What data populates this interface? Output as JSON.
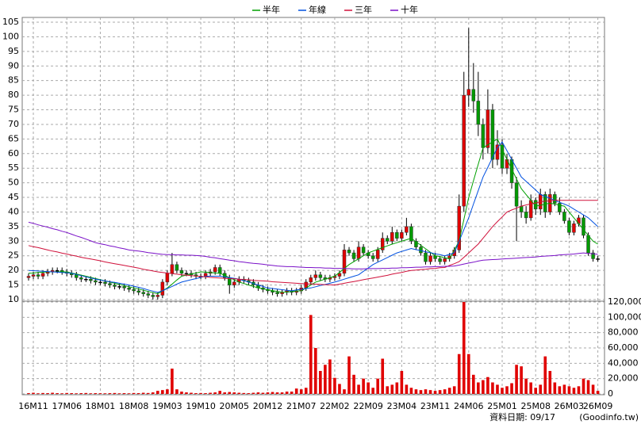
{
  "chart_data": {
    "type": "candlestick",
    "categories": [
      null,
      "16M11",
      null,
      null,
      null,
      null,
      null,
      null,
      "17M06",
      null,
      null,
      null,
      null,
      null,
      null,
      "18M01",
      null,
      null,
      null,
      null,
      null,
      null,
      "18M08",
      null,
      null,
      null,
      null,
      null,
      null,
      "19M03",
      null,
      null,
      null,
      null,
      null,
      null,
      "19M10",
      null,
      null,
      null,
      null,
      null,
      null,
      "20M05",
      null,
      null,
      null,
      null,
      null,
      null,
      "20M12",
      null,
      null,
      null,
      null,
      null,
      null,
      "21M07",
      null,
      null,
      null,
      null,
      null,
      null,
      "22M02",
      null,
      null,
      null,
      null,
      null,
      null,
      "22M09",
      null,
      null,
      null,
      null,
      null,
      null,
      "23M04",
      null,
      null,
      null,
      null,
      null,
      null,
      "23M11",
      null,
      null,
      null,
      null,
      null,
      null,
      "24M06",
      null,
      null,
      null,
      null,
      null,
      null,
      "25M01",
      null,
      null,
      null,
      null,
      null,
      null,
      "25M08",
      null,
      null,
      null,
      null,
      null,
      null,
      "26M03",
      null,
      null,
      null,
      null,
      null,
      "26M09"
    ],
    "open": [
      17.5,
      18,
      18.5,
      18,
      19,
      19.5,
      20,
      20,
      19.5,
      19,
      18.5,
      17.5,
      17,
      17,
      16.5,
      16,
      16,
      15.5,
      15,
      14.5,
      14.5,
      14,
      13.5,
      13,
      12.5,
      12,
      11.5,
      11,
      11.5,
      16,
      19,
      22,
      20,
      19,
      19,
      18.5,
      18,
      18,
      19,
      19.5,
      21,
      19,
      17.5,
      15,
      16,
      17,
      16.5,
      16,
      15,
      14,
      13.5,
      13,
      12.5,
      12,
      12.5,
      13,
      12.5,
      13,
      14,
      16,
      17.5,
      18.5,
      17.5,
      17,
      17.5,
      18,
      19,
      27,
      26,
      24,
      28,
      26,
      25,
      24,
      27,
      31,
      30,
      33,
      31,
      33,
      35,
      30,
      28,
      26,
      23,
      25,
      24,
      23,
      24,
      25,
      27,
      42,
      80,
      82,
      78,
      70,
      62,
      75,
      58,
      63,
      55,
      58,
      50,
      42,
      40,
      38,
      44,
      41,
      46,
      40,
      46,
      43,
      40,
      37,
      33,
      36,
      38,
      32,
      26,
      24
    ],
    "high": [
      19,
      19.5,
      19.5,
      20,
      20.5,
      21,
      21,
      21,
      20.5,
      20,
      19.5,
      18.5,
      18,
      18,
      17.5,
      17,
      17,
      16.5,
      16,
      15.5,
      15.5,
      15,
      14.5,
      14,
      13.5,
      13,
      12.5,
      12.5,
      17,
      20,
      26,
      23,
      21,
      20,
      20,
      19.5,
      19,
      20,
      20.5,
      22,
      22,
      20,
      18.5,
      17,
      18,
      18,
      17.5,
      17,
      16,
      15,
      14.5,
      14,
      13.5,
      13.5,
      14,
      14,
      14,
      15,
      17,
      18.5,
      20,
      19.5,
      18.5,
      18.5,
      19,
      20,
      29,
      28,
      27,
      30,
      29,
      27,
      26,
      28,
      33,
      32,
      35,
      34,
      34,
      38,
      36,
      31,
      29,
      27,
      26,
      26,
      25,
      25,
      26,
      28,
      46,
      88,
      103,
      91,
      88,
      72,
      82,
      77,
      68,
      65,
      60,
      59,
      52,
      44,
      42,
      46,
      45,
      48,
      47,
      48,
      47,
      45,
      41,
      38,
      37,
      39,
      39,
      33,
      27,
      25
    ],
    "low": [
      16.5,
      17,
      17,
      17,
      18,
      18.5,
      19,
      18.5,
      18,
      17.5,
      16.5,
      16,
      16,
      15.5,
      15,
      15,
      14.5,
      14,
      13.5,
      13.5,
      13,
      12.5,
      12,
      11.5,
      11,
      10.5,
      10,
      10,
      10.5,
      15,
      18,
      19,
      18,
      18,
      17.5,
      17,
      17,
      17,
      18,
      18.5,
      18,
      16.5,
      12,
      14,
      15,
      15.5,
      15,
      14,
      13,
      12.5,
      12,
      11.5,
      11,
      11,
      11.5,
      11.5,
      11.5,
      12,
      13,
      15,
      16.5,
      16.5,
      16,
      16,
      16.5,
      17,
      18,
      25,
      23,
      23,
      25,
      24,
      23,
      23,
      26,
      29,
      29,
      30,
      30,
      32,
      29,
      27,
      25,
      22,
      22,
      23,
      22,
      22,
      23,
      24,
      26,
      40,
      76,
      74,
      66,
      58,
      60,
      55,
      56,
      53,
      53,
      48,
      30,
      38,
      36,
      37,
      39,
      39,
      38,
      39,
      42,
      39,
      36,
      32,
      32,
      35,
      31,
      25,
      23,
      23
    ],
    "close": [
      18,
      18.5,
      18,
      19,
      19.5,
      20,
      20,
      19.5,
      19,
      18.5,
      17.5,
      17,
      17,
      16.5,
      16,
      16,
      15.5,
      15,
      14.5,
      14.5,
      14,
      13.5,
      13,
      12.5,
      12,
      11.5,
      11,
      11.5,
      16,
      19,
      22,
      20,
      19,
      19,
      18.5,
      18,
      18,
      19,
      19.5,
      21,
      19,
      17.5,
      15,
      16,
      17,
      16.5,
      16,
      15,
      14,
      13.5,
      13,
      12.5,
      12,
      12.5,
      13,
      12.5,
      13,
      14,
      16,
      17.5,
      18.5,
      17.5,
      17,
      17.5,
      18,
      19,
      27,
      26,
      24,
      28,
      26,
      25,
      24,
      27,
      31,
      30,
      33,
      31,
      33,
      35,
      30,
      28,
      26,
      23,
      25,
      24,
      23,
      24,
      25,
      27,
      42,
      80,
      82,
      78,
      70,
      62,
      75,
      58,
      63,
      55,
      58,
      50,
      42,
      40,
      38,
      44,
      41,
      46,
      40,
      46,
      43,
      40,
      37,
      33,
      36,
      38,
      32,
      26,
      24,
      24
    ],
    "volume": [
      1000,
      1500,
      800,
      1200,
      1000,
      1500,
      1000,
      800,
      1200,
      1000,
      800,
      1000,
      1200,
      800,
      1000,
      900,
      800,
      1000,
      1200,
      800,
      1000,
      800,
      1200,
      1000,
      1500,
      1200,
      2000,
      4000,
      5000,
      6000,
      33000,
      6000,
      3000,
      2000,
      1500,
      1000,
      1200,
      1000,
      1500,
      2000,
      4000,
      2000,
      2500,
      2000,
      1500,
      1200,
      1000,
      1500,
      2000,
      1500,
      2000,
      2500,
      2000,
      2000,
      3000,
      3000,
      7000,
      6000,
      8000,
      103000,
      60000,
      30000,
      38000,
      45000,
      21000,
      13000,
      6000,
      49000,
      25000,
      12000,
      20000,
      15000,
      8000,
      20000,
      46000,
      10000,
      12000,
      15000,
      30000,
      12000,
      8000,
      6000,
      5000,
      6000,
      5000,
      4000,
      5000,
      6000,
      8000,
      10000,
      52000,
      120000,
      52000,
      25000,
      15000,
      18000,
      22000,
      15000,
      12000,
      8000,
      10000,
      14000,
      38000,
      36000,
      20000,
      15000,
      8000,
      12000,
      49000,
      30000,
      15000,
      10000,
      12000,
      10000,
      8000,
      10000,
      20000,
      18000,
      12000,
      4000
    ],
    "up_color": "#e00000",
    "down_color": "#009a00",
    "flat_color": "#000000",
    "volume_color": "#e00000",
    "ylim": [
      10,
      105
    ],
    "yticks": [
      10,
      15,
      20,
      25,
      30,
      35,
      40,
      45,
      50,
      55,
      60,
      65,
      70,
      75,
      80,
      85,
      90,
      95,
      100,
      105
    ],
    "y2lim": [
      0,
      120000
    ],
    "y2ticks": [
      0,
      {
        "value": 20000,
        "label": "20,000"
      },
      {
        "value": 40000,
        "label": "40,000"
      },
      {
        "value": 60000,
        "label": "60,000"
      },
      {
        "value": 80000,
        "label": "80,000"
      },
      {
        "value": 100000,
        "label": "100,000"
      },
      {
        "value": 120000,
        "label": "120,000"
      }
    ],
    "grid": true,
    "series": [
      {
        "name": "半年",
        "color": "#00a000",
        "values": [
          19.0,
          19.1,
          19.3,
          19.4,
          19.5,
          19.5,
          19.5,
          19.5,
          19.5,
          19.1,
          18.8,
          18.4,
          18.0,
          17.6,
          17.2,
          16.8,
          16.4,
          16.0,
          15.6,
          15.2,
          14.8,
          14.4,
          14.0,
          13.6,
          13.2,
          12.8,
          12.4,
          12.0,
          13.0,
          14.0,
          15.3,
          16.7,
          18.0,
          18.4,
          18.8,
          19.1,
          19.5,
          19.4,
          19.3,
          19.1,
          19.0,
          18.3,
          17.5,
          16.8,
          16.0,
          15.5,
          15.0,
          14.5,
          14.0,
          13.7,
          13.4,
          13.1,
          12.8,
          12.5,
          12.6,
          12.8,
          12.9,
          13.0,
          14.0,
          15.0,
          16.0,
          16.5,
          17.0,
          17.5,
          18.0,
          19.3,
          20.7,
          22.0,
          23.0,
          24.0,
          25.0,
          26.0,
          26.6,
          27.2,
          27.8,
          28.4,
          29.0,
          29.5,
          30.0,
          30.5,
          31.0,
          29.8,
          28.6,
          27.4,
          26.2,
          25.0,
          24.7,
          24.3,
          24.0,
          27.0,
          30.0,
          37.5,
          45.0,
          50.7,
          56.3,
          62.0,
          63.0,
          64.0,
          65.0,
          61.5,
          58.0,
          54.7,
          51.3,
          48.0,
          46.0,
          44.0,
          42.0,
          42.3,
          42.7,
          43.0,
          42.7,
          42.3,
          42.0,
          40.0,
          38.0,
          36.0,
          34.0,
          32.0,
          30.0,
          29.0
        ]
      },
      {
        "name": "年線",
        "color": "#0050e0",
        "values": [
          20.0,
          19.9,
          19.8,
          19.7,
          19.6,
          19.5,
          19.4,
          19.3,
          19.2,
          19.0,
          18.6,
          18.2,
          17.8,
          17.4,
          17.0,
          16.7,
          16.4,
          16.1,
          15.9,
          15.6,
          15.3,
          15.0,
          14.6,
          14.2,
          13.8,
          13.3,
          12.9,
          12.5,
          13.0,
          13.8,
          14.5,
          15.3,
          16.0,
          16.4,
          16.8,
          17.2,
          17.6,
          18.0,
          18,
          18,
          18,
          17.8,
          17.5,
          17.3,
          17.0,
          16.5,
          16.0,
          15.5,
          15.0,
          14.5,
          14.0,
          13.8,
          13.6,
          13.4,
          13.2,
          13.0,
          13.3,
          13.5,
          13.8,
          14.0,
          14.4,
          14.8,
          15.2,
          15.6,
          16.0,
          16.5,
          17.0,
          17.5,
          18.0,
          18.5,
          19.7,
          20.8,
          22.0,
          22.8,
          23.6,
          24.4,
          25.2,
          26.0,
          26.5,
          27.0,
          27.5,
          27.1,
          26.8,
          26.4,
          26.1,
          25.7,
          25.4,
          25.0,
          25.5,
          26.0,
          30.0,
          34.0,
          38.0,
          42.7,
          47.3,
          52.0,
          55.3,
          58.7,
          62.0,
          64.0,
          61.0,
          58.0,
          55.0,
          52.0,
          50.5,
          49.0,
          47.5,
          46.0,
          45.3,
          44.7,
          44.0,
          43.3,
          42.7,
          42.0,
          41.0,
          40.0,
          39.0,
          38.0,
          36.5,
          35.0
        ]
      },
      {
        "name": "三年",
        "color": "#d0103a",
        "values": [
          28.5,
          28.1,
          27.8,
          27.4,
          27.0,
          26.6,
          26.3,
          25.9,
          25.6,
          25.2,
          24.9,
          24.5,
          24.2,
          23.9,
          23.6,
          23.3,
          22.9,
          22.6,
          22.3,
          22.0,
          21.7,
          21.4,
          21.1,
          20.8,
          20.4,
          20.1,
          19.8,
          19.5,
          19.3,
          19.1,
          18.9,
          18.7,
          18.5,
          18.4,
          18.2,
          18.1,
          17.9,
          17.8,
          17.6,
          17.5,
          17.4,
          17.3,
          17.2,
          17.1,
          17.0,
          16.9,
          16.8,
          16.6,
          16.5,
          16.4,
          16.3,
          16.1,
          16.0,
          15.9,
          15.8,
          15.7,
          15.6,
          15.5,
          15.4,
          15.4,
          15.3,
          15.2,
          15.1,
          15.1,
          15.0,
          15.3,
          15.6,
          15.9,
          16.2,
          16.5,
          16.8,
          17.1,
          17.4,
          17.7,
          18.0,
          18.3,
          18.7,
          19.0,
          19.3,
          19.7,
          20.0,
          20.1,
          20.3,
          20.4,
          20.6,
          20.7,
          20.9,
          21.0,
          21.7,
          22.3,
          23.0,
          24.5,
          26.0,
          27.5,
          29.0,
          31.0,
          33.0,
          35.0,
          36.7,
          38.3,
          40.0,
          40.7,
          41.3,
          42.0,
          42.4,
          42.8,
          43.1,
          43.5,
          43.7,
          43.8,
          44,
          44,
          44,
          44,
          44,
          44,
          44,
          44,
          44,
          44
        ]
      },
      {
        "name": "十年",
        "color": "#7a10c8",
        "values": [
          36.5,
          36.1,
          35.6,
          35.2,
          34.8,
          34.3,
          33.9,
          33.4,
          33.0,
          32.4,
          31.8,
          31.3,
          30.7,
          30.1,
          29.5,
          29.1,
          28.8,
          28.4,
          28.1,
          27.7,
          27.4,
          27.0,
          26.8,
          26.6,
          26.4,
          26.1,
          25.9,
          25.7,
          25.5,
          25.4,
          25.4,
          25.3,
          25.3,
          25.2,
          25.2,
          25.1,
          25.0,
          24.8,
          24.5,
          24.3,
          24.0,
          23.8,
          23.5,
          23.3,
          23.0,
          22.8,
          22.6,
          22.4,
          22.3,
          22.1,
          21.9,
          21.7,
          21.5,
          21.4,
          21.3,
          21.3,
          21.2,
          21.1,
          21.0,
          21.0,
          20.9,
          20.9,
          20.8,
          20.8,
          20.7,
          20.7,
          20.6,
          20.6,
          20.5,
          20.5,
          20.5,
          20.6,
          20.6,
          20.6,
          20.7,
          20.7,
          20.8,
          20.8,
          20.9,
          20.9,
          21.0,
          21.1,
          21.1,
          21.2,
          21.2,
          21.3,
          21.3,
          21.4,
          21.4,
          21.5,
          21.8,
          22.2,
          22.5,
          22.8,
          23.2,
          23.5,
          23.6,
          23.7,
          23.8,
          23.9,
          24.0,
          24.1,
          24.2,
          24.3,
          24.4,
          24.5,
          24.6,
          24.8,
          24.9,
          25.0,
          25.1,
          25.3,
          25.4,
          25.5,
          25.6,
          25.8,
          26.0,
          25.8,
          25.7,
          25.5
        ]
      }
    ],
    "source_date": "資料日期: 09/17",
    "source": "(Goodinfo.tw)"
  }
}
